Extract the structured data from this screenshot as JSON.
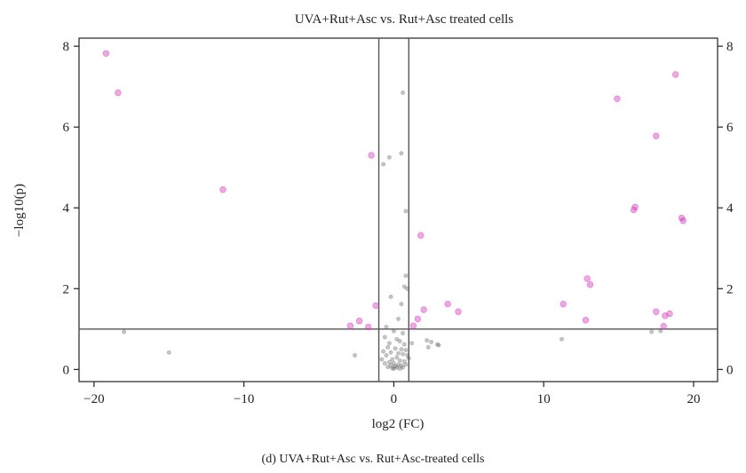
{
  "chart_data": {
    "type": "scatter",
    "title": "UVA+Rut+Asc vs. Rut+Asc treated cells",
    "caption": "(d) UVA+Rut+Asc vs. Rut+Asc-treated cells",
    "xlabel": "log2 (FC)",
    "ylabel": "−log10(p)",
    "xlim": [
      -21,
      21.6
    ],
    "ylim": [
      -0.3,
      8.2
    ],
    "x_ticks": [
      -20,
      -10,
      0,
      10,
      20
    ],
    "x_tick_labels": [
      "−20",
      "−10",
      "0",
      "10",
      "20"
    ],
    "y_ticks": [
      0,
      2,
      4,
      6,
      8
    ],
    "y_tick_labels": [
      "0",
      "2",
      "4",
      "6",
      "8"
    ],
    "right_y_tick_labels": [
      "0",
      "2",
      "4",
      "6",
      "8"
    ],
    "threshold_lines": {
      "fc_low": -1,
      "fc_high": 1,
      "p": 1
    },
    "grid": false,
    "colors": {
      "significant": "#d63fc0",
      "non_significant": "#555555",
      "threshold_line": "#555555",
      "axis": "#222222"
    },
    "series": [
      {
        "group": "significant",
        "points": [
          [
            -19.2,
            7.82
          ],
          [
            -18.4,
            6.85
          ],
          [
            -11.4,
            4.45
          ],
          [
            -1.5,
            5.3
          ],
          [
            -1.2,
            1.58
          ],
          [
            -2.9,
            1.08
          ],
          [
            -2.3,
            1.2
          ],
          [
            -1.7,
            1.05
          ],
          [
            1.3,
            1.08
          ],
          [
            1.6,
            1.25
          ],
          [
            2.0,
            1.48
          ],
          [
            1.8,
            3.32
          ],
          [
            3.6,
            1.62
          ],
          [
            4.3,
            1.43
          ],
          [
            11.3,
            1.62
          ],
          [
            12.8,
            1.22
          ],
          [
            12.9,
            2.25
          ],
          [
            13.1,
            2.1
          ],
          [
            14.9,
            6.7
          ],
          [
            16.0,
            3.95
          ],
          [
            16.1,
            4.02
          ],
          [
            17.5,
            5.78
          ],
          [
            17.5,
            1.43
          ],
          [
            18.0,
            1.07
          ],
          [
            18.1,
            1.33
          ],
          [
            18.4,
            1.38
          ],
          [
            18.8,
            7.3
          ],
          [
            19.2,
            3.75
          ],
          [
            19.3,
            3.68
          ]
        ]
      },
      {
        "group": "non_significant",
        "points": [
          [
            -18.0,
            0.93
          ],
          [
            -15.0,
            0.42
          ],
          [
            -2.6,
            0.35
          ],
          [
            0.6,
            6.85
          ],
          [
            0.5,
            5.35
          ],
          [
            -0.3,
            5.25
          ],
          [
            -0.7,
            5.08
          ],
          [
            0.8,
            3.92
          ],
          [
            0.8,
            2.32
          ],
          [
            0.7,
            2.05
          ],
          [
            0.9,
            2.0
          ],
          [
            -0.2,
            1.8
          ],
          [
            0.5,
            1.62
          ],
          [
            0.3,
            1.25
          ],
          [
            -0.5,
            1.05
          ],
          [
            0.0,
            0.95
          ],
          [
            0.6,
            0.9
          ],
          [
            -0.6,
            0.8
          ],
          [
            0.2,
            0.75
          ],
          [
            0.4,
            0.7
          ],
          [
            -0.3,
            0.65
          ],
          [
            0.7,
            0.62
          ],
          [
            1.2,
            0.65
          ],
          [
            2.2,
            0.72
          ],
          [
            2.5,
            0.68
          ],
          [
            2.9,
            0.62
          ],
          [
            3.0,
            0.6
          ],
          [
            2.3,
            0.55
          ],
          [
            -0.4,
            0.55
          ],
          [
            0.1,
            0.52
          ],
          [
            0.5,
            0.5
          ],
          [
            0.8,
            0.48
          ],
          [
            -0.7,
            0.45
          ],
          [
            -0.2,
            0.42
          ],
          [
            0.3,
            0.4
          ],
          [
            0.6,
            0.38
          ],
          [
            -0.5,
            0.35
          ],
          [
            0.9,
            0.35
          ],
          [
            1.0,
            0.28
          ],
          [
            -0.8,
            0.25
          ],
          [
            0.2,
            0.3
          ],
          [
            -0.1,
            0.25
          ],
          [
            0.4,
            0.22
          ],
          [
            0.7,
            0.2
          ],
          [
            -0.3,
            0.18
          ],
          [
            0.0,
            0.15
          ],
          [
            0.3,
            0.12
          ],
          [
            -0.2,
            0.1
          ],
          [
            0.5,
            0.1
          ],
          [
            0.1,
            0.08
          ],
          [
            -0.4,
            0.06
          ],
          [
            0.2,
            0.05
          ],
          [
            0.6,
            0.05
          ],
          [
            -0.1,
            0.03
          ],
          [
            0.4,
            0.02
          ],
          [
            0.0,
            0.02
          ],
          [
            0.8,
            0.12
          ],
          [
            -0.6,
            0.15
          ],
          [
            11.2,
            0.75
          ],
          [
            17.2,
            0.93
          ],
          [
            17.8,
            0.95
          ]
        ]
      }
    ]
  }
}
